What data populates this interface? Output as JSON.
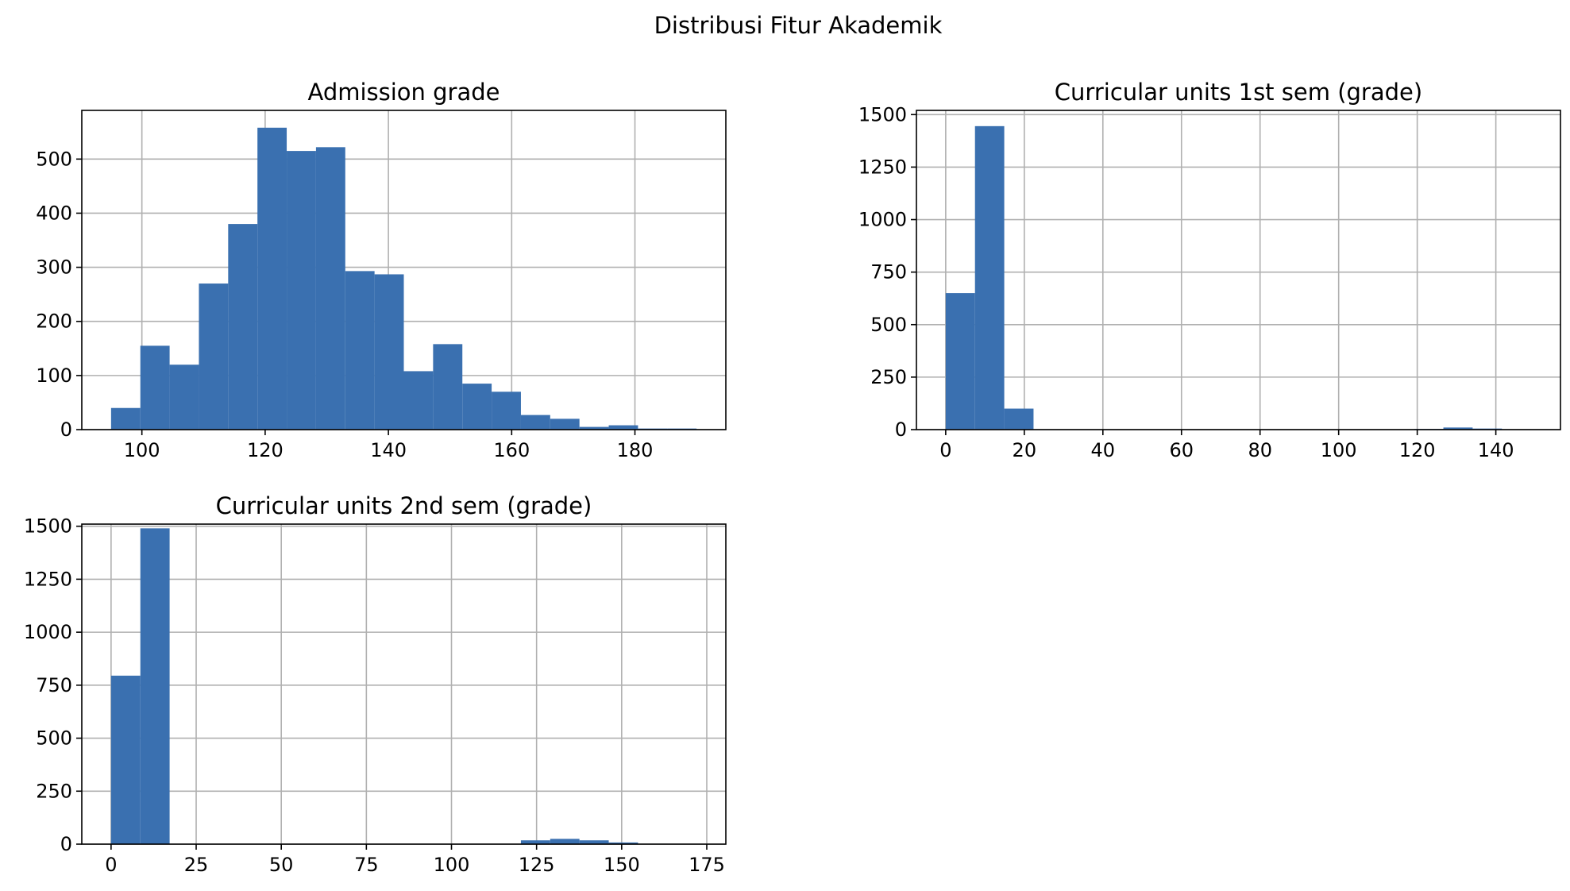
{
  "figure": {
    "suptitle": "Distribusi Fitur Akademik",
    "bar_color": "#3a70b0"
  },
  "chart_data": [
    {
      "type": "bar",
      "title": "Admission grade",
      "xlabel": "",
      "ylabel": "",
      "bin_edges": [
        95,
        99.75,
        104.5,
        109.25,
        114,
        118.75,
        123.5,
        128.25,
        133,
        137.75,
        142.5,
        147.25,
        152,
        156.75,
        161.5,
        166.25,
        171,
        175.75,
        180.5,
        185.25,
        190
      ],
      "values": [
        40,
        155,
        120,
        270,
        380,
        558,
        515,
        522,
        293,
        287,
        108,
        158,
        85,
        70,
        27,
        20,
        5,
        8,
        2,
        2
      ],
      "xlim": [
        90.25,
        194.75
      ],
      "ylim": [
        0,
        590
      ],
      "xticks": [
        100,
        120,
        140,
        160,
        180
      ],
      "yticks": [
        0,
        100,
        200,
        300,
        400,
        500
      ],
      "grid": true
    },
    {
      "type": "bar",
      "title": "Curricular units 1st sem (grade)",
      "xlabel": "",
      "ylabel": "",
      "bin_edges": [
        0,
        7.45,
        14.9,
        22.35,
        29.8,
        37.25,
        44.7,
        52.15,
        59.6,
        67.05,
        74.5,
        81.95,
        89.4,
        96.85,
        104.3,
        111.75,
        119.2,
        126.65,
        134.1,
        141.55,
        149
      ],
      "values": [
        650,
        1445,
        100,
        0,
        0,
        0,
        0,
        0,
        0,
        0,
        0,
        0,
        0,
        0,
        0,
        0,
        3,
        10,
        5,
        2
      ],
      "xlim": [
        -7.45,
        156.45
      ],
      "ylim": [
        0,
        1520
      ],
      "xticks": [
        0,
        20,
        40,
        60,
        80,
        100,
        120,
        140
      ],
      "yticks": [
        0,
        250,
        500,
        750,
        1000,
        1250,
        1500
      ],
      "grid": true
    },
    {
      "type": "bar",
      "title": "Curricular units 2nd sem (grade)",
      "xlabel": "",
      "ylabel": "",
      "bin_edges": [
        0,
        8.6,
        17.2,
        25.8,
        34.4,
        43,
        51.6,
        60.2,
        68.8,
        77.4,
        86,
        94.6,
        103.2,
        111.8,
        120.4,
        129,
        137.6,
        146.2,
        154.8,
        163.4,
        172
      ],
      "values": [
        795,
        1490,
        0,
        0,
        0,
        0,
        0,
        0,
        0,
        0,
        0,
        0,
        0,
        0,
        18,
        25,
        18,
        8,
        2,
        1
      ],
      "xlim": [
        -8.6,
        180.6
      ],
      "ylim": [
        0,
        1510
      ],
      "xticks": [
        0,
        25,
        50,
        75,
        100,
        125,
        150,
        175
      ],
      "yticks": [
        0,
        250,
        500,
        750,
        1000,
        1250,
        1500
      ],
      "grid": true
    }
  ]
}
